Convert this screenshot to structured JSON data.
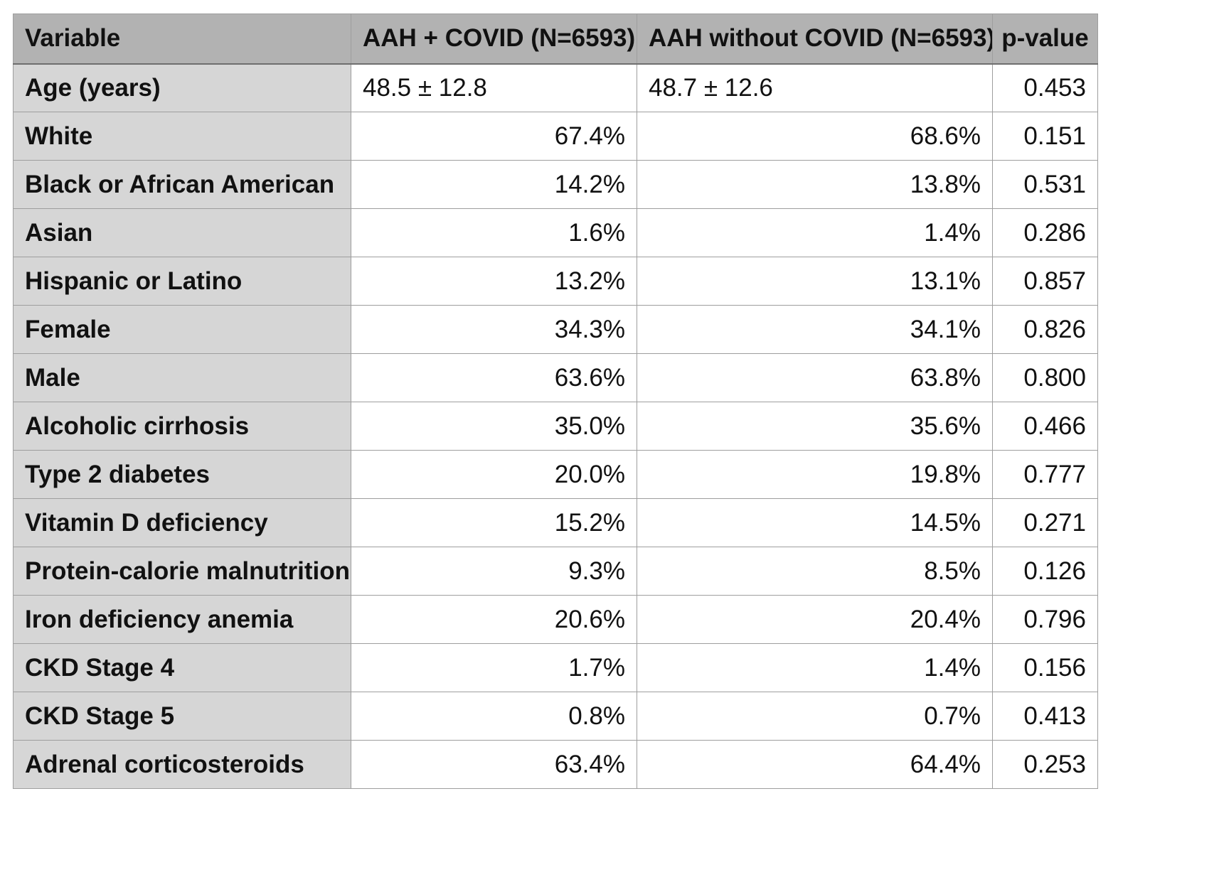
{
  "table": {
    "headers": [
      "Variable",
      "AAH + COVID (N=6593)",
      "AAH without COVID (N=6593)",
      "p-value"
    ],
    "rows": [
      {
        "variable": "Age (years)",
        "covid": "48.5 ± 12.8",
        "no_covid": "48.7 ± 12.6",
        "p": "0.453"
      },
      {
        "variable": "White",
        "covid": "67.4%",
        "no_covid": "68.6%",
        "p": "0.151"
      },
      {
        "variable": "Black or African American",
        "covid": "14.2%",
        "no_covid": "13.8%",
        "p": "0.531"
      },
      {
        "variable": "Asian",
        "covid": "1.6%",
        "no_covid": "1.4%",
        "p": "0.286"
      },
      {
        "variable": "Hispanic or Latino",
        "covid": "13.2%",
        "no_covid": "13.1%",
        "p": "0.857"
      },
      {
        "variable": "Female",
        "covid": "34.3%",
        "no_covid": "34.1%",
        "p": "0.826"
      },
      {
        "variable": "Male",
        "covid": "63.6%",
        "no_covid": "63.8%",
        "p": "0.800"
      },
      {
        "variable": "Alcoholic cirrhosis",
        "covid": "35.0%",
        "no_covid": "35.6%",
        "p": "0.466"
      },
      {
        "variable": "Type 2 diabetes",
        "covid": "20.0%",
        "no_covid": "19.8%",
        "p": "0.777"
      },
      {
        "variable": "Vitamin D deficiency",
        "covid": "15.2%",
        "no_covid": "14.5%",
        "p": "0.271"
      },
      {
        "variable": "Protein-calorie malnutrition",
        "covid": "9.3%",
        "no_covid": "8.5%",
        "p": "0.126"
      },
      {
        "variable": "Iron deficiency anemia",
        "covid": "20.6%",
        "no_covid": "20.4%",
        "p": "0.796"
      },
      {
        "variable": "CKD Stage 4",
        "covid": "1.7%",
        "no_covid": "1.4%",
        "p": "0.156"
      },
      {
        "variable": "CKD Stage 5",
        "covid": "0.8%",
        "no_covid": "0.7%",
        "p": "0.413"
      },
      {
        "variable": "Adrenal corticosteroids",
        "covid": "63.4%",
        "no_covid": "64.4%",
        "p": "0.253"
      }
    ]
  }
}
